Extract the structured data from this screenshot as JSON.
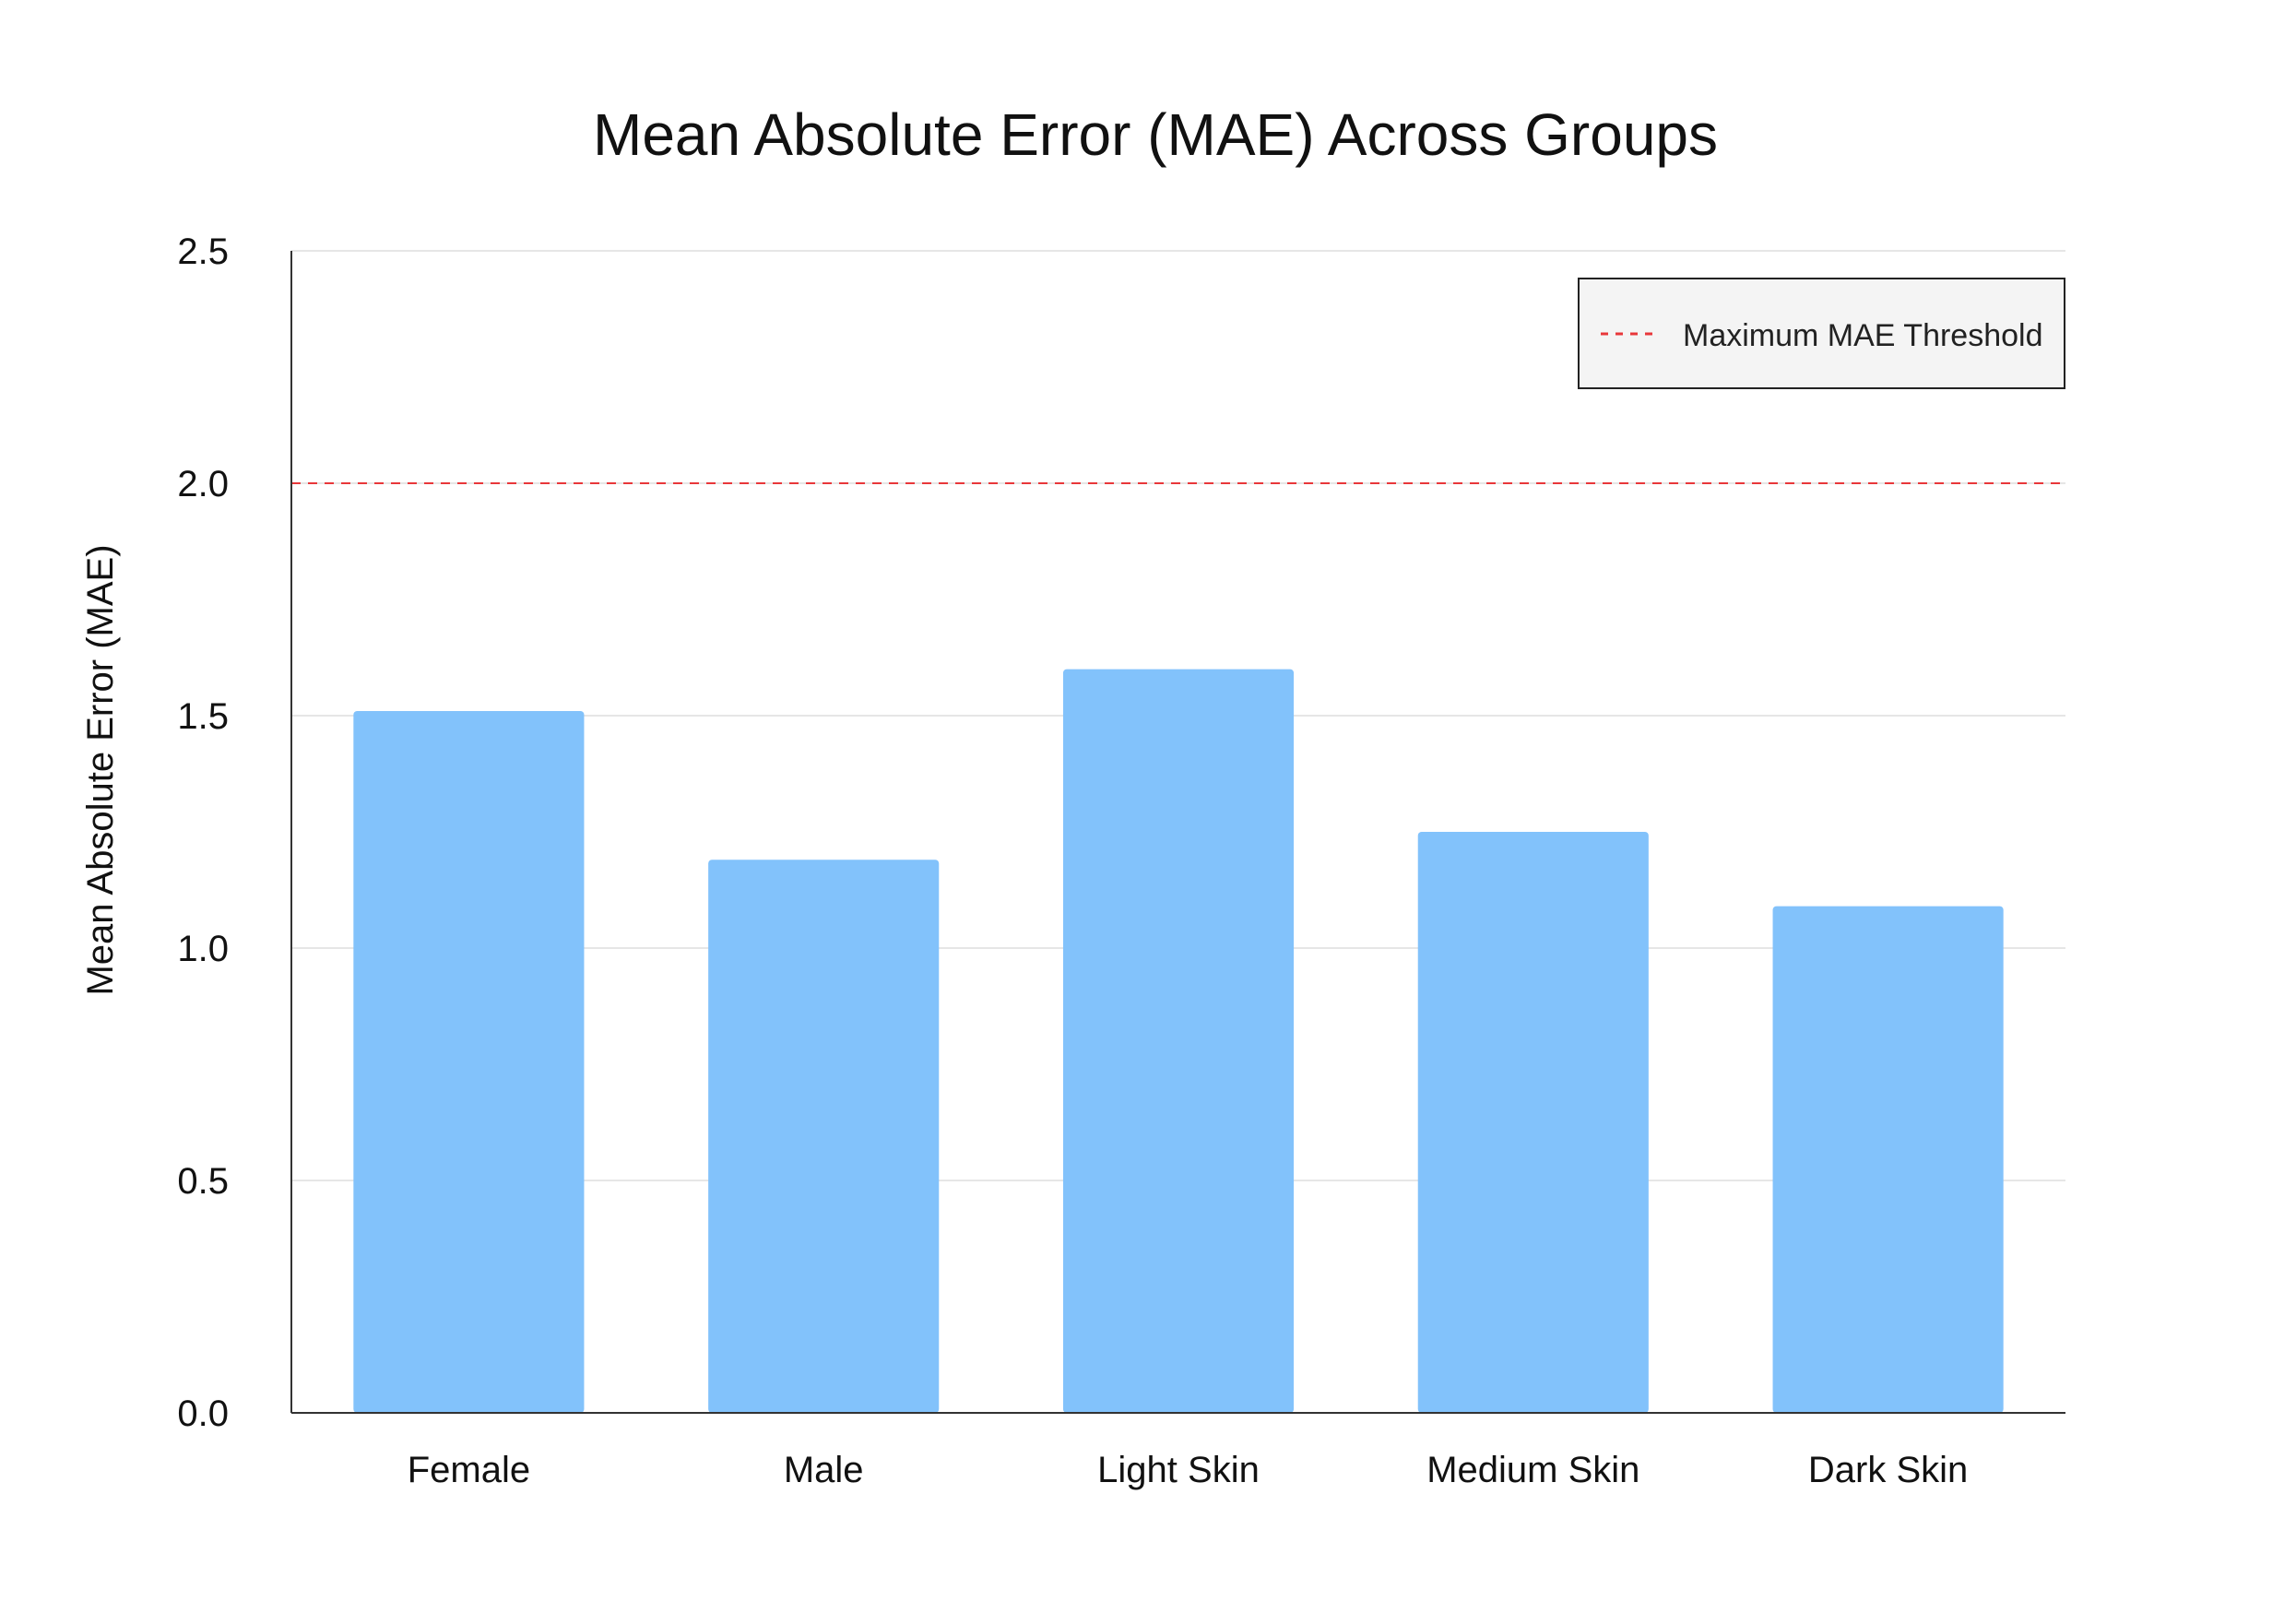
{
  "chart_data": {
    "type": "bar",
    "title": "Mean Absolute Error (MAE) Across Groups",
    "xlabel": "",
    "ylabel": "Mean Absolute Error (MAE)",
    "categories": [
      "Female",
      "Male",
      "Light Skin",
      "Medium Skin",
      "Dark Skin"
    ],
    "values": [
      1.51,
      1.19,
      1.6,
      1.25,
      1.09
    ],
    "ylim": [
      0,
      2.5
    ],
    "yticks": [
      "0.0",
      "0.5",
      "1.0",
      "1.5",
      "2.0",
      "2.5"
    ],
    "grid": "horizontal",
    "bar_color": "#82c2fb",
    "threshold": {
      "value": 2.0,
      "label": "Maximum MAE Threshold",
      "color": "#e8373a",
      "style": "dashed"
    },
    "legend_position": "top-right"
  }
}
